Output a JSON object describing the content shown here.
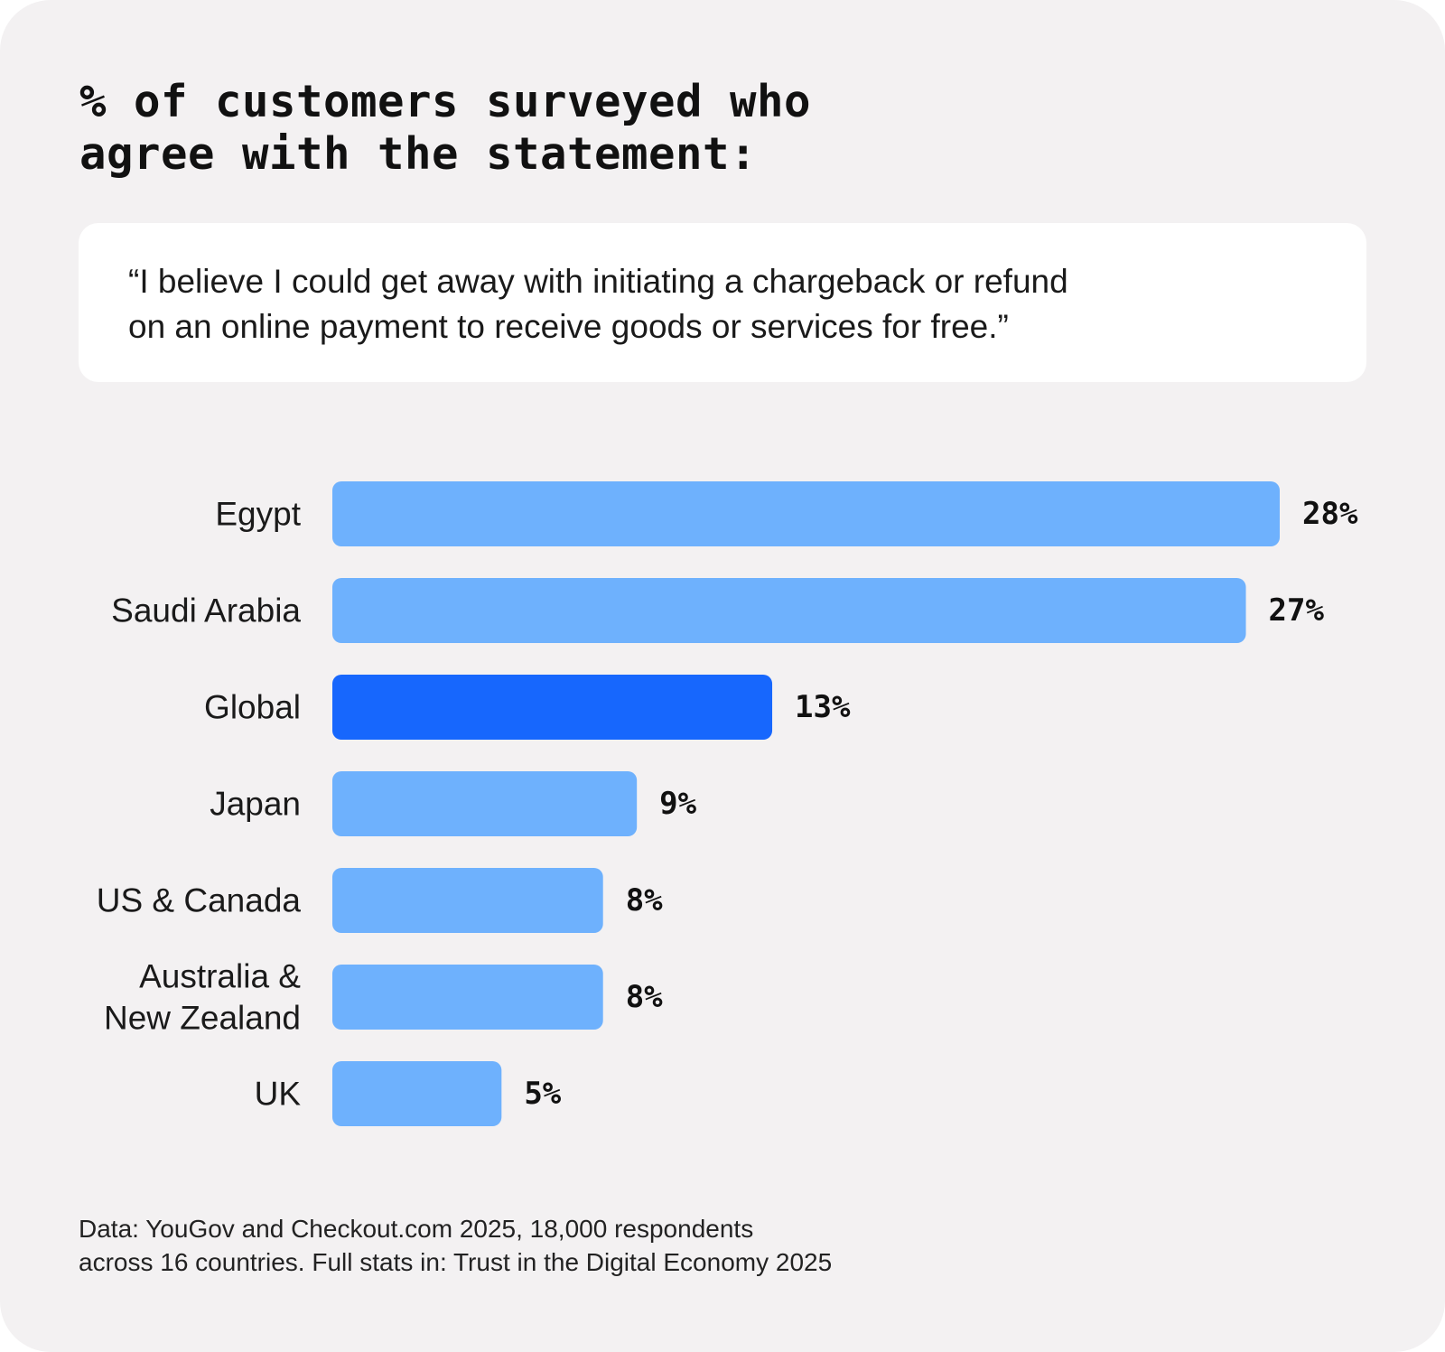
{
  "header": {
    "title_line1": "% of customers surveyed who",
    "title_line2": "agree with the statement:"
  },
  "quote": {
    "line1": "“I believe I could get away with initiating a chargeback or refund",
    "line2": "on an online payment to receive goods or services for free.”"
  },
  "colors": {
    "bar": "#6eb1fd",
    "bar_highlight": "#1767fd",
    "card_background": "#f3f1f2",
    "quote_background": "#ffffff"
  },
  "chart_data": {
    "type": "bar",
    "orientation": "horizontal",
    "title": "% of customers surveyed who agree with the statement:",
    "xlabel": "",
    "ylabel": "",
    "xlim": [
      0,
      28
    ],
    "grid": false,
    "categories": [
      [
        "Egypt"
      ],
      [
        "Saudi Arabia"
      ],
      [
        "Global"
      ],
      [
        "Japan"
      ],
      [
        "US & Canada"
      ],
      [
        "Australia &",
        "New Zealand"
      ],
      [
        "UK"
      ]
    ],
    "values": [
      28,
      27,
      13,
      9,
      8,
      8,
      5
    ],
    "value_labels": [
      "28%",
      "27%",
      "13%",
      "9%",
      "8%",
      "8%",
      "5%"
    ],
    "highlight": "Global"
  },
  "footer": {
    "line1": "Data: YouGov and Checkout.com 2025, 18,000 respondents",
    "line2": "across 16 countries. Full stats in: Trust in the Digital Economy 2025"
  }
}
